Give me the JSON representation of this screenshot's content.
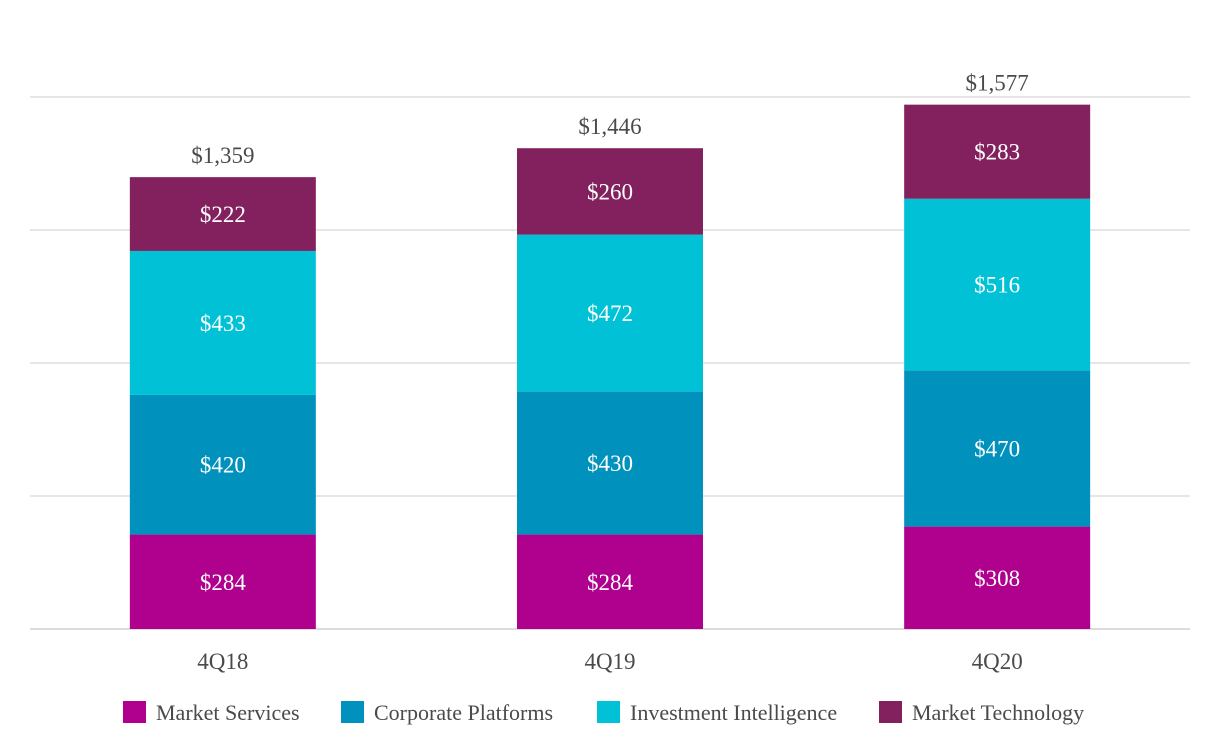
{
  "chart_data": {
    "type": "bar",
    "stacked": true,
    "title": "",
    "xlabel": "",
    "ylabel": "",
    "ylim": [
      0,
      1600
    ],
    "grid": true,
    "legend_position": "bottom",
    "categories": [
      "4Q18",
      "4Q19",
      "4Q20"
    ],
    "series": [
      {
        "name": "Market Services",
        "values": [
          284,
          284,
          308
        ],
        "labels": [
          "$284",
          "$284",
          "$308"
        ],
        "color": "#b0008e"
      },
      {
        "name": "Corporate Platforms",
        "values": [
          420,
          430,
          470
        ],
        "labels": [
          "$420",
          "$430",
          "$470"
        ],
        "color": "#0092bc"
      },
      {
        "name": "Investment Intelligence",
        "values": [
          433,
          472,
          516
        ],
        "labels": [
          "$433",
          "$472",
          "$516"
        ],
        "color": "#00c1d5"
      },
      {
        "name": "Market Technology",
        "values": [
          222,
          260,
          283
        ],
        "labels": [
          "$222",
          "$260",
          "$283"
        ],
        "color": "#83215f"
      }
    ],
    "totals": [
      1359,
      1446,
      1577
    ],
    "total_labels": [
      "$1,359",
      "$1,446",
      "$1,577"
    ]
  }
}
